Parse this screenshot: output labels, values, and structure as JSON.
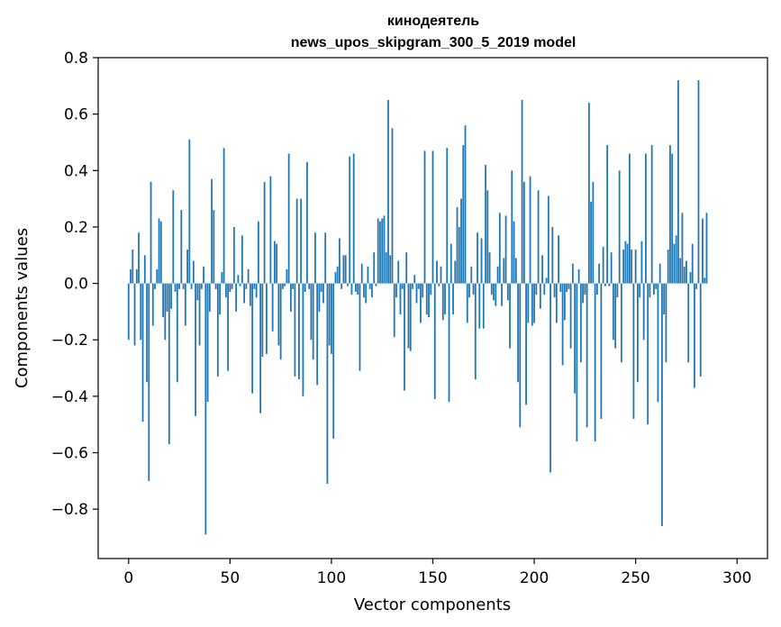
{
  "chart_data": {
    "type": "bar",
    "title": [
      "кинодеятель",
      "news_upos_skipgram_300_5_2019 model"
    ],
    "xlabel": "Vector components",
    "ylabel": "Components values",
    "xlim": [
      -15,
      315
    ],
    "ylim": [
      -0.975,
      0.8
    ],
    "xticks": [
      0,
      50,
      100,
      150,
      200,
      250,
      300
    ],
    "xtick_labels": [
      "0",
      "50",
      "100",
      "150",
      "200",
      "250",
      "300"
    ],
    "yticks": [
      -0.8,
      -0.6,
      -0.4,
      -0.2,
      0.0,
      0.2,
      0.4,
      0.6,
      0.8
    ],
    "ytick_labels": [
      "−0.8",
      "−0.6",
      "−0.4",
      "−0.2",
      "0.0",
      "0.2",
      "0.4",
      "0.6",
      "0.8"
    ],
    "bar_color": "#1f77b4",
    "series": [
      {
        "name": "кинодеятель",
        "values": [
          -0.2,
          0.05,
          0.12,
          -0.22,
          0.05,
          0.18,
          -0.2,
          -0.49,
          0.1,
          -0.35,
          -0.7,
          0.36,
          -0.15,
          -0.02,
          0.05,
          0.23,
          0.22,
          -0.12,
          -0.2,
          -0.1,
          -0.57,
          -0.09,
          0.33,
          -0.03,
          -0.35,
          -0.02,
          0.26,
          -0.02,
          -0.15,
          0.12,
          0.51,
          -0.02,
          0.08,
          -0.47,
          -0.06,
          -0.22,
          -0.02,
          0.06,
          -0.89,
          -0.42,
          -0.1,
          0.37,
          0.26,
          -0.02,
          -0.33,
          -0.11,
          0.04,
          0.48,
          -0.05,
          -0.31,
          -0.03,
          -0.02,
          0.2,
          -0.1,
          0.03,
          -0.01,
          0.17,
          -0.07,
          -0.02,
          0.05,
          -0.08,
          -0.39,
          -0.02,
          -0.05,
          0.22,
          -0.46,
          -0.26,
          0.36,
          -0.25,
          0.0,
          0.38,
          -0.17,
          0.15,
          0.14,
          -0.22,
          -0.27,
          -0.02,
          -0.01,
          0.05,
          0.46,
          -0.1,
          -0.02,
          -0.33,
          0.3,
          -0.34,
          0.3,
          -0.4,
          -0.03,
          0.43,
          -0.02,
          -0.2,
          -0.27,
          0.18,
          -0.36,
          -0.1,
          -0.03,
          -0.07,
          0.18,
          -0.71,
          -0.22,
          -0.25,
          -0.55,
          0.04,
          0.06,
          0.16,
          -0.02,
          0.1,
          0.1,
          -0.01,
          0.45,
          -0.04,
          0.46,
          -0.03,
          -0.04,
          -0.31,
          0.07,
          -0.05,
          -0.07,
          0.06,
          -0.02,
          -0.05,
          0.11,
          -0.01,
          0.23,
          0.22,
          0.23,
          0.24,
          0.11,
          0.65,
          0.1,
          0.55,
          -0.19,
          -0.05,
          0.08,
          -0.11,
          -0.02,
          -0.38,
          0.11,
          -0.23,
          -0.24,
          -0.02,
          0.03,
          -0.07,
          -0.02,
          -0.14,
          -0.05,
          0.47,
          -0.11,
          -0.12,
          -0.04,
          0.47,
          -0.41,
          0.08,
          -0.01,
          0.06,
          -0.13,
          -0.11,
          0.48,
          -0.42,
          0.14,
          -0.11,
          0.08,
          0.27,
          0.2,
          0.3,
          0.49,
          0.56,
          -0.14,
          -0.05,
          0.06,
          -0.04,
          -0.34,
          0.18,
          -0.16,
          0.16,
          -0.16,
          0.42,
          0.33,
          0.11,
          -0.04,
          -0.06,
          -0.08,
          0.06,
          0.25,
          -0.08,
          0.09,
          0.24,
          -0.06,
          -0.23,
          0.4,
          0.22,
          0.09,
          -0.35,
          -0.51,
          0.65,
          0.36,
          -0.43,
          -0.14,
          0.38,
          -0.15,
          -0.14,
          -0.04,
          0.33,
          -0.09,
          0.1,
          -0.04,
          0.02,
          0.31,
          -0.67,
          0.2,
          -0.05,
          -0.14,
          0.17,
          -0.03,
          -0.29,
          -0.13,
          -0.03,
          -0.02,
          -0.23,
          0.07,
          -0.39,
          -0.56,
          0.05,
          -0.28,
          -0.07,
          -0.04,
          -0.51,
          0.64,
          0.29,
          0.36,
          -0.56,
          -0.04,
          0.07,
          -0.48,
          0.13,
          -0.01,
          0.49,
          -0.01,
          0.11,
          -0.2,
          -0.23,
          -0.05,
          0.4,
          -0.28,
          0.12,
          0.15,
          0.14,
          0.46,
          0.12,
          -0.48,
          0.12,
          -0.35,
          -0.05,
          0.15,
          -0.2,
          0.46,
          -0.5,
          -0.05,
          0.49,
          -0.04,
          -0.02,
          -0.42,
          0.07,
          -0.86,
          -0.11,
          -0.28,
          0.12,
          0.49,
          0.46,
          0.14,
          0.17,
          0.72,
          0.09,
          0.25,
          0.06,
          0.08,
          -0.28,
          0.04,
          0.14,
          -0.37,
          -0.02,
          0.72,
          -0.33,
          0.23,
          0.02,
          0.25
        ]
      }
    ]
  }
}
